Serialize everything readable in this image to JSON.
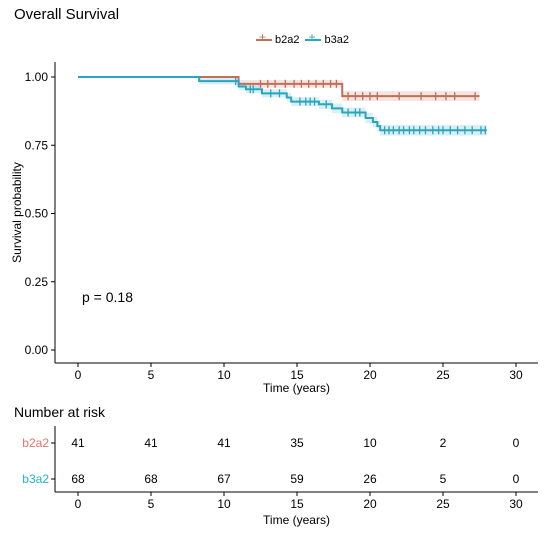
{
  "title": "Overall Survival",
  "risk_title": "Number at risk",
  "pvalue_text": "p = 0.18",
  "legend": [
    {
      "label": "b2a2",
      "color": "#c0705a"
    },
    {
      "label": "b3a2",
      "color": "#2aa5bd"
    }
  ],
  "chart_data": [
    {
      "type": "line",
      "kind": "kaplan-meier",
      "title": "Overall Survival",
      "xlabel": "Time (years)",
      "ylabel": "Survival probability",
      "xlim": [
        0,
        30
      ],
      "ylim": [
        0,
        1
      ],
      "x_ticks": [
        0,
        5,
        10,
        15,
        20,
        25,
        30
      ],
      "y_ticks": [
        0.0,
        0.25,
        0.5,
        0.75,
        1.0
      ],
      "y_tick_labels": [
        "0.00",
        "0.25",
        "0.50",
        "0.75",
        "1.00"
      ],
      "legend_position": "top",
      "grid": false,
      "annotation": "p = 0.18",
      "series": [
        {
          "name": "b2a2",
          "color": "#c0705a",
          "steps": [
            [
              0,
              1.0
            ],
            [
              11.0,
              0.975
            ],
            [
              18.1,
              0.93
            ],
            [
              27.5,
              0.93
            ]
          ],
          "censor_times": [
            12.5,
            13.0,
            13.5,
            14.2,
            14.8,
            15.3,
            15.8,
            16.3,
            16.8,
            17.3,
            17.7,
            18.5,
            19.0,
            19.5,
            20.0,
            20.5,
            22.0,
            23.5,
            24.5,
            25.2,
            25.8,
            27.2
          ]
        },
        {
          "name": "b3a2",
          "color": "#2aa5bd",
          "steps": [
            [
              0,
              1.0
            ],
            [
              8.3,
              0.985
            ],
            [
              11.0,
              0.965
            ],
            [
              11.5,
              0.955
            ],
            [
              12.6,
              0.94
            ],
            [
              14.3,
              0.925
            ],
            [
              14.6,
              0.91
            ],
            [
              16.5,
              0.9
            ],
            [
              17.4,
              0.885
            ],
            [
              18.1,
              0.87
            ],
            [
              19.7,
              0.85
            ],
            [
              20.2,
              0.835
            ],
            [
              20.5,
              0.82
            ],
            [
              20.7,
              0.805
            ],
            [
              28.0,
              0.805
            ]
          ],
          "censor_times": [
            10.8,
            11.8,
            12.0,
            13.2,
            13.8,
            15.2,
            15.6,
            15.9,
            16.2,
            17.0,
            18.5,
            19.0,
            19.3,
            21.0,
            21.3,
            21.6,
            22.0,
            22.3,
            22.7,
            23.0,
            23.4,
            23.8,
            24.3,
            24.7,
            25.0,
            25.5,
            26.0,
            26.5,
            27.0,
            27.6,
            27.9
          ]
        }
      ]
    },
    {
      "type": "table",
      "title": "Number at risk",
      "xlabel": "Time (years)",
      "x_ticks": [
        0,
        5,
        10,
        15,
        20,
        25,
        30
      ],
      "rows": [
        {
          "name": "b2a2",
          "color": "#e8716b",
          "values": [
            "41",
            "41",
            "41",
            "35",
            "10",
            "2",
            "0"
          ]
        },
        {
          "name": "b3a2",
          "color": "#1eb7c7",
          "values": [
            "68",
            "68",
            "67",
            "59",
            "26",
            "5",
            "0"
          ]
        }
      ]
    }
  ]
}
